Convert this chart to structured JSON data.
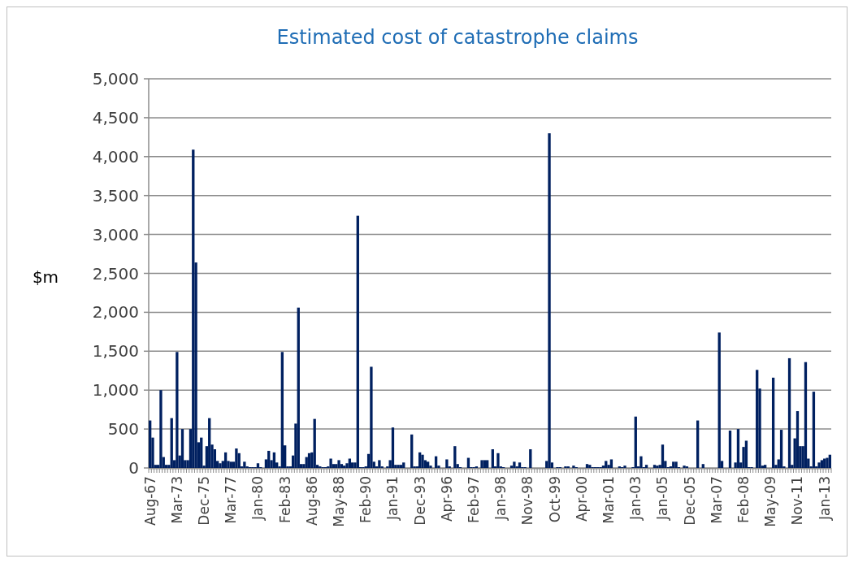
{
  "chart_data": {
    "type": "bar",
    "title": "Estimated cost of catastrophe claims",
    "ylabel": "$m",
    "color": "#002060",
    "categories": [
      "Aug-67",
      null,
      null,
      null,
      null,
      null,
      null,
      null,
      null,
      null,
      "Mar-73",
      null,
      null,
      null,
      null,
      null,
      null,
      null,
      null,
      null,
      "Dec-75",
      null,
      null,
      null,
      null,
      null,
      null,
      null,
      null,
      null,
      "Mar-77",
      null,
      null,
      null,
      null,
      null,
      null,
      null,
      null,
      null,
      "Jan-80",
      null,
      null,
      null,
      null,
      null,
      null,
      null,
      null,
      null,
      "Feb-83",
      null,
      null,
      null,
      null,
      null,
      null,
      null,
      null,
      null,
      "Aug-86",
      null,
      null,
      null,
      null,
      null,
      null,
      null,
      null,
      null,
      "May-88",
      null,
      null,
      null,
      null,
      null,
      null,
      null,
      null,
      null,
      "Feb-90",
      null,
      null,
      null,
      null,
      null,
      null,
      null,
      null,
      null,
      "Jan-91",
      null,
      null,
      null,
      null,
      null,
      null,
      null,
      null,
      null,
      "Dec-93",
      null,
      null,
      null,
      null,
      null,
      null,
      null,
      null,
      null,
      "Apr-96",
      null,
      null,
      null,
      null,
      null,
      null,
      null,
      null,
      null,
      "Feb-97",
      null,
      null,
      null,
      null,
      null,
      null,
      null,
      null,
      null,
      "Jan-98",
      null,
      null,
      null,
      null,
      null,
      null,
      null,
      null,
      null,
      "Nov-98",
      null,
      null,
      null,
      null,
      null,
      null,
      null,
      null,
      null,
      "Oct-99",
      null,
      null,
      null,
      null,
      null,
      null,
      null,
      null,
      null,
      "Apr-00",
      null,
      null,
      null,
      null,
      null,
      null,
      null,
      null,
      null,
      "Mar-01",
      null,
      null,
      null,
      null,
      null,
      null,
      null,
      null,
      null,
      "Jan-03",
      null,
      null,
      null,
      null,
      null,
      null,
      null,
      null,
      null,
      "Jan-05",
      null,
      null,
      null,
      null,
      null,
      null,
      null,
      null,
      null,
      "Dec-05",
      null,
      null,
      null,
      null,
      null,
      null,
      null,
      null,
      null,
      "Mar-07",
      null,
      null,
      null,
      null,
      null,
      null,
      null,
      null,
      null,
      "Feb-08",
      null,
      null,
      null,
      null,
      null,
      null,
      null,
      null,
      null,
      "May-09",
      null,
      null,
      null,
      null,
      null,
      null,
      null,
      null,
      null,
      "Nov-11",
      null,
      null,
      null,
      null,
      null,
      null,
      null,
      null,
      null,
      "Jan-13",
      null,
      null
    ],
    "values": [
      610,
      390,
      40,
      40,
      1000,
      140,
      40,
      40,
      640,
      100,
      1490,
      160,
      500,
      100,
      100,
      500,
      4090,
      2640,
      330,
      390,
      30,
      280,
      640,
      300,
      240,
      90,
      60,
      90,
      200,
      90,
      80,
      80,
      250,
      190,
      20,
      80,
      20,
      10,
      10,
      10,
      60,
      10,
      0,
      110,
      220,
      100,
      200,
      70,
      20,
      1490,
      290,
      20,
      20,
      160,
      570,
      2060,
      50,
      50,
      140,
      190,
      200,
      630,
      40,
      20,
      10,
      10,
      20,
      120,
      50,
      50,
      100,
      50,
      30,
      60,
      120,
      70,
      70,
      3240,
      10,
      10,
      20,
      180,
      1300,
      80,
      20,
      100,
      20,
      0,
      20,
      100,
      520,
      40,
      40,
      40,
      70,
      0,
      0,
      430,
      20,
      20,
      200,
      170,
      100,
      80,
      30,
      0,
      150,
      30,
      0,
      0,
      110,
      20,
      0,
      280,
      50,
      10,
      0,
      0,
      130,
      10,
      10,
      20,
      0,
      100,
      100,
      100,
      0,
      240,
      20,
      190,
      20,
      10,
      0,
      0,
      30,
      80,
      20,
      70,
      10,
      10,
      0,
      240,
      0,
      0,
      0,
      0,
      0,
      90,
      4300,
      70,
      0,
      10,
      10,
      0,
      20,
      20,
      0,
      30,
      10,
      0,
      0,
      0,
      50,
      40,
      10,
      10,
      10,
      10,
      30,
      90,
      40,
      110,
      0,
      0,
      20,
      10,
      30,
      0,
      0,
      10,
      660,
      20,
      150,
      10,
      40,
      0,
      0,
      40,
      30,
      40,
      300,
      90,
      10,
      20,
      80,
      80,
      10,
      0,
      30,
      20,
      0,
      0,
      0,
      610,
      0,
      50,
      0,
      0,
      0,
      0,
      0,
      1740,
      90,
      0,
      0,
      480,
      0,
      70,
      500,
      70,
      270,
      350,
      10,
      10,
      0,
      1260,
      1020,
      30,
      40,
      0,
      0,
      1160,
      40,
      110,
      490,
      20,
      0,
      1410,
      40,
      380,
      730,
      280,
      280,
      1360,
      120,
      20,
      980,
      20,
      70,
      100,
      120,
      130,
      170
    ],
    "ylim": [
      0,
      5000
    ],
    "yticks": [
      0,
      500,
      {
        "value": 1000,
        "label": "1,000"
      },
      {
        "value": 1500,
        "label": "1,500"
      },
      {
        "value": 2000,
        "label": "2,000"
      },
      {
        "value": 2500,
        "label": "2,500"
      },
      {
        "value": 3000,
        "label": "3,000"
      },
      {
        "value": 3500,
        "label": "3,500"
      },
      {
        "value": 4000,
        "label": "4,000"
      },
      {
        "value": 4500,
        "label": "4,500"
      },
      {
        "value": 5000,
        "label": "5,000"
      }
    ],
    "grid": "y"
  }
}
